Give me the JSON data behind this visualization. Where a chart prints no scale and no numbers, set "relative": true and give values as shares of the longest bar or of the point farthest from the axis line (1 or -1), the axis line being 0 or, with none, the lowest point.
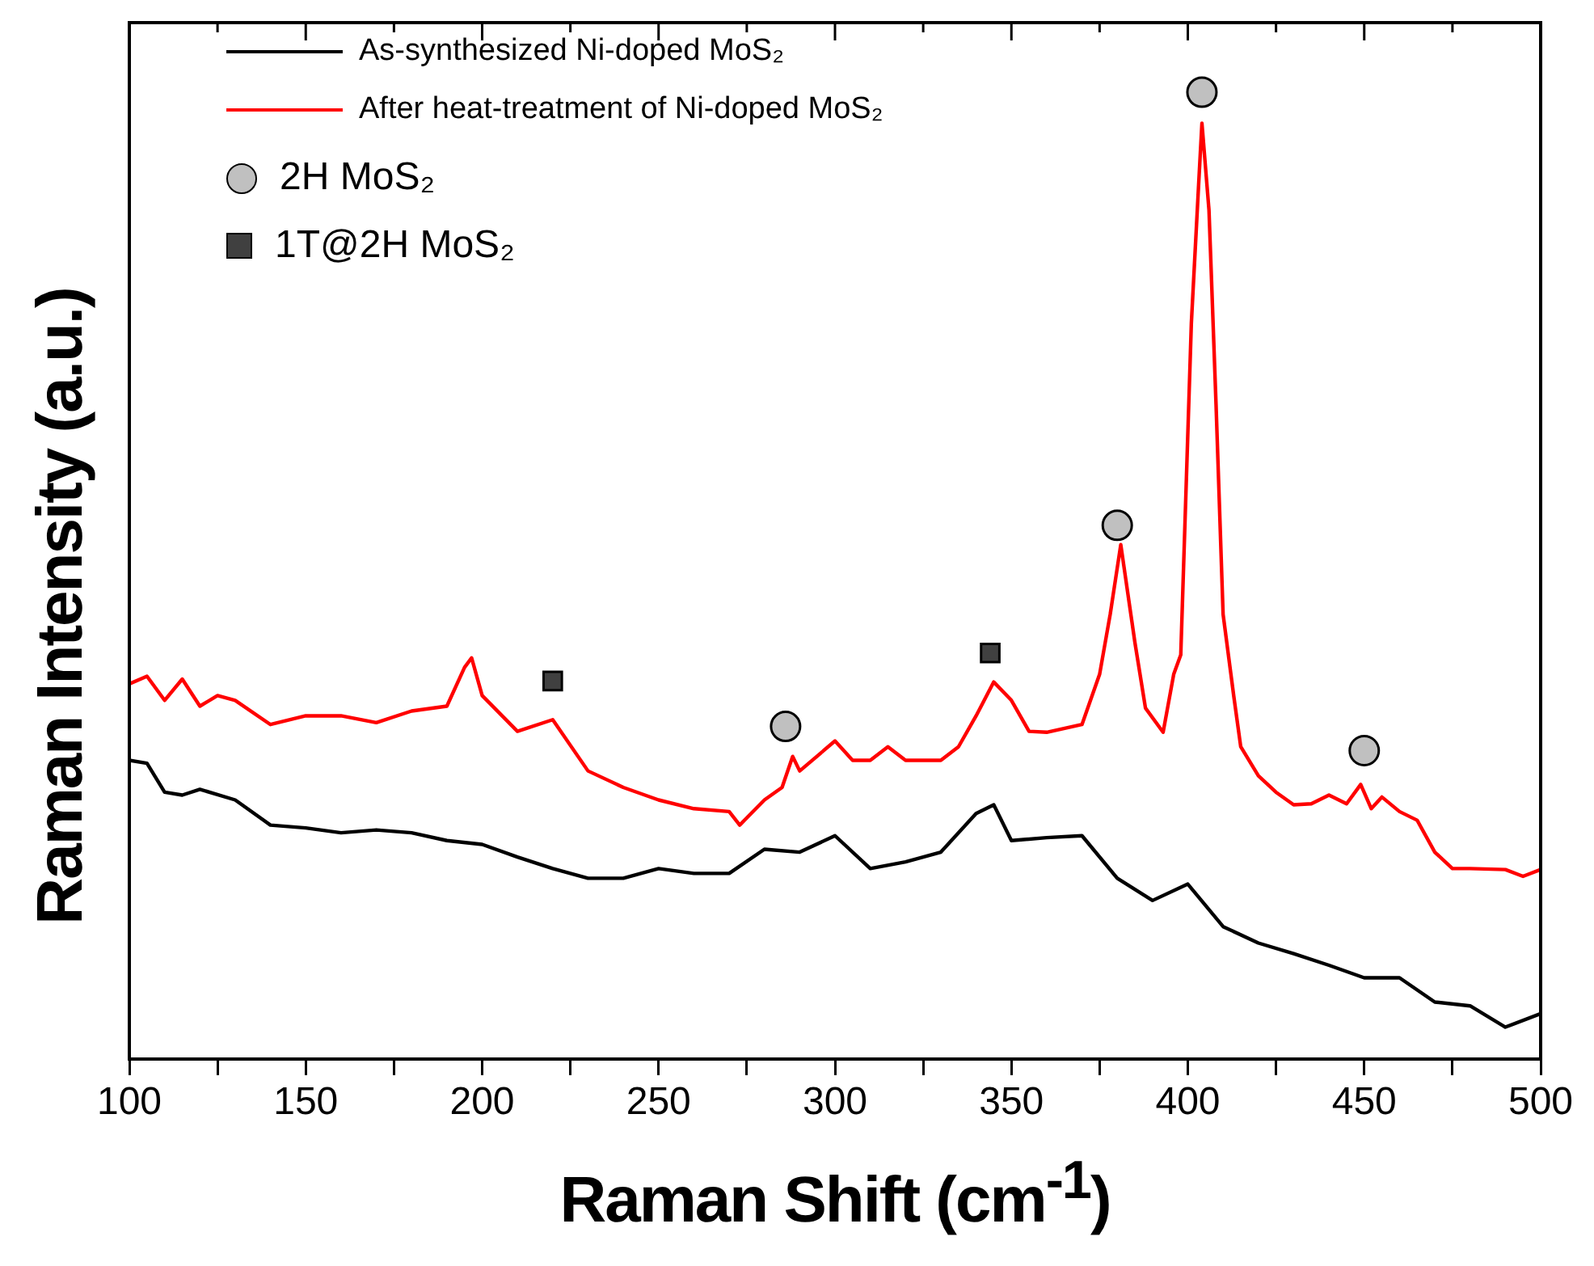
{
  "chart_data": {
    "type": "line",
    "relative": true,
    "xlabel": "Raman Shift (cm$^{-1}$)",
    "ylabel": "Raman Intensity (a.u.)",
    "xlim": [
      100,
      500
    ],
    "xticks": [
      100,
      {
        "value": 125,
        "label": null
      },
      150,
      {
        "value": 175,
        "label": null
      },
      200,
      {
        "value": 225,
        "label": null
      },
      250,
      {
        "value": 275,
        "label": null
      },
      300,
      {
        "value": 325,
        "label": null
      },
      350,
      {
        "value": 375,
        "label": null
      },
      400,
      {
        "value": 425,
        "label": null
      },
      450,
      {
        "value": 475,
        "label": null
      },
      500
    ],
    "legend": "top left",
    "grid": false,
    "line_style": "solid",
    "series": [
      {
        "name": "As-synthesized Ni-doped MoS₂",
        "color": "#000000",
        "x": [
          100,
          105,
          110,
          115,
          120,
          130,
          140,
          150,
          160,
          170,
          180,
          190,
          200,
          210,
          220,
          230,
          240,
          250,
          260,
          270,
          280,
          290,
          300,
          310,
          320,
          330,
          340,
          345,
          350,
          360,
          370,
          380,
          390,
          400,
          410,
          420,
          430,
          440,
          450,
          460,
          470,
          480,
          490,
          500
        ],
        "values": [
          0.309,
          0.306,
          0.276,
          0.273,
          0.279,
          0.268,
          0.242,
          0.239,
          0.234,
          0.237,
          0.234,
          0.226,
          0.222,
          0.209,
          0.197,
          0.187,
          0.187,
          0.197,
          0.192,
          0.192,
          0.217,
          0.214,
          0.231,
          0.197,
          0.204,
          0.214,
          0.254,
          0.263,
          0.226,
          0.229,
          0.231,
          0.187,
          0.164,
          0.181,
          0.137,
          0.12,
          0.109,
          0.097,
          0.084,
          0.084,
          0.059,
          0.055,
          0.033,
          0.047
        ]
      },
      {
        "name": "After heat-treatment of Ni-doped MoS₂",
        "color": "#ff0000",
        "x": [
          100,
          105,
          110,
          115,
          120,
          125,
          130,
          140,
          150,
          160,
          170,
          180,
          190,
          195,
          197,
          200,
          210,
          220,
          230,
          240,
          250,
          260,
          270,
          273,
          280,
          285,
          288,
          290,
          300,
          305,
          310,
          315,
          320,
          330,
          335,
          340,
          345,
          350,
          355,
          360,
          370,
          375,
          378,
          381,
          385,
          388,
          393,
          396,
          398,
          401,
          403,
          404,
          406,
          408,
          410,
          413,
          415,
          420,
          425,
          430,
          435,
          440,
          445,
          449,
          452,
          455,
          460,
          465,
          470,
          475,
          480,
          490,
          495,
          500
        ],
        "values": [
          0.388,
          0.396,
          0.371,
          0.393,
          0.365,
          0.376,
          0.371,
          0.346,
          0.355,
          0.355,
          0.348,
          0.36,
          0.365,
          0.405,
          0.415,
          0.376,
          0.339,
          0.351,
          0.298,
          0.281,
          0.268,
          0.259,
          0.256,
          0.242,
          0.268,
          0.281,
          0.313,
          0.298,
          0.329,
          0.309,
          0.309,
          0.323,
          0.309,
          0.309,
          0.323,
          0.355,
          0.39,
          0.371,
          0.339,
          0.338,
          0.346,
          0.398,
          0.46,
          0.532,
          0.431,
          0.363,
          0.338,
          0.398,
          0.418,
          0.761,
          0.9,
          0.968,
          0.878,
          0.677,
          0.46,
          0.376,
          0.323,
          0.293,
          0.276,
          0.263,
          0.264,
          0.273,
          0.264,
          0.284,
          0.259,
          0.271,
          0.256,
          0.247,
          0.214,
          0.197,
          0.197,
          0.196,
          0.189,
          0.196
        ]
      },
      {
        "name": "2H MoS₂",
        "type": "scatter",
        "marker": "circle",
        "color": "#c0c0c0",
        "x": [
          286,
          380,
          404,
          450
        ],
        "values": [
          0.344,
          0.552,
          1,
          0.319
        ]
      },
      {
        "name": "1T@2H MoS₂",
        "type": "scatter",
        "marker": "square",
        "color": "#404040",
        "x": [
          220,
          344
        ],
        "values": [
          0.391,
          0.42
        ]
      }
    ]
  }
}
